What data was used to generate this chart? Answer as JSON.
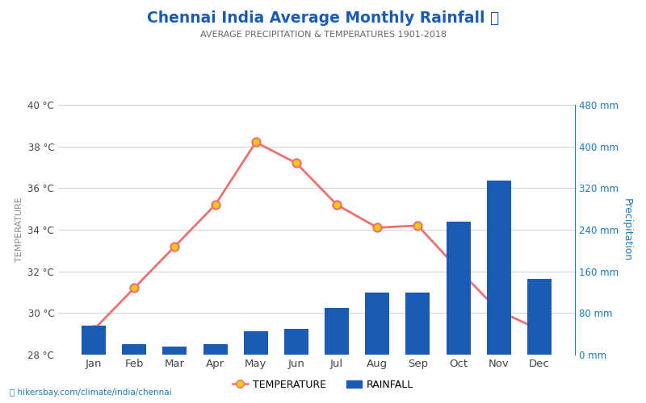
{
  "months": [
    "Jan",
    "Feb",
    "Mar",
    "Apr",
    "May",
    "Jun",
    "Jul",
    "Aug",
    "Sep",
    "Oct",
    "Nov",
    "Dec"
  ],
  "temperature": [
    29.2,
    31.2,
    33.2,
    35.2,
    38.2,
    37.2,
    35.2,
    34.1,
    34.2,
    32.1,
    30.1,
    29.2
  ],
  "rainfall": [
    55,
    20,
    15,
    20,
    45,
    50,
    90,
    120,
    120,
    255,
    335,
    145
  ],
  "bar_color": "#1a5cb5",
  "line_color": "#f07070",
  "marker_face": "#f5c518",
  "marker_edge": "#f07070",
  "title": "Chennai India Average Monthly Rainfall 🌧",
  "subtitle": "AVERAGE PRECIPITATION & TEMPERATURES 1901-2018",
  "title_color": "#1a5cb5",
  "subtitle_color": "#666666",
  "ylabel_left": "TEMPERATURE",
  "ylabel_right": "Precipitation",
  "ylim_temp": [
    28,
    40
  ],
  "ylim_rain": [
    0,
    480
  ],
  "temp_ticks": [
    28,
    30,
    32,
    34,
    36,
    38,
    40
  ],
  "rain_ticks": [
    0,
    80,
    160,
    240,
    320,
    400,
    480
  ],
  "temp_tick_labels": [
    "28 °C",
    "30 °C",
    "32 °C",
    "34 °C",
    "36 °C",
    "38 °C",
    "40 °C"
  ],
  "rain_tick_labels": [
    "0 mm",
    "80 mm",
    "160 mm",
    "240 mm",
    "320 mm",
    "400 mm",
    "480 mm"
  ],
  "axis_color": "#1a7abf",
  "watermark": "hikersbay.com/climate/india/chennai",
  "bg_color": "#ffffff",
  "grid_color": "#d0d0d0"
}
